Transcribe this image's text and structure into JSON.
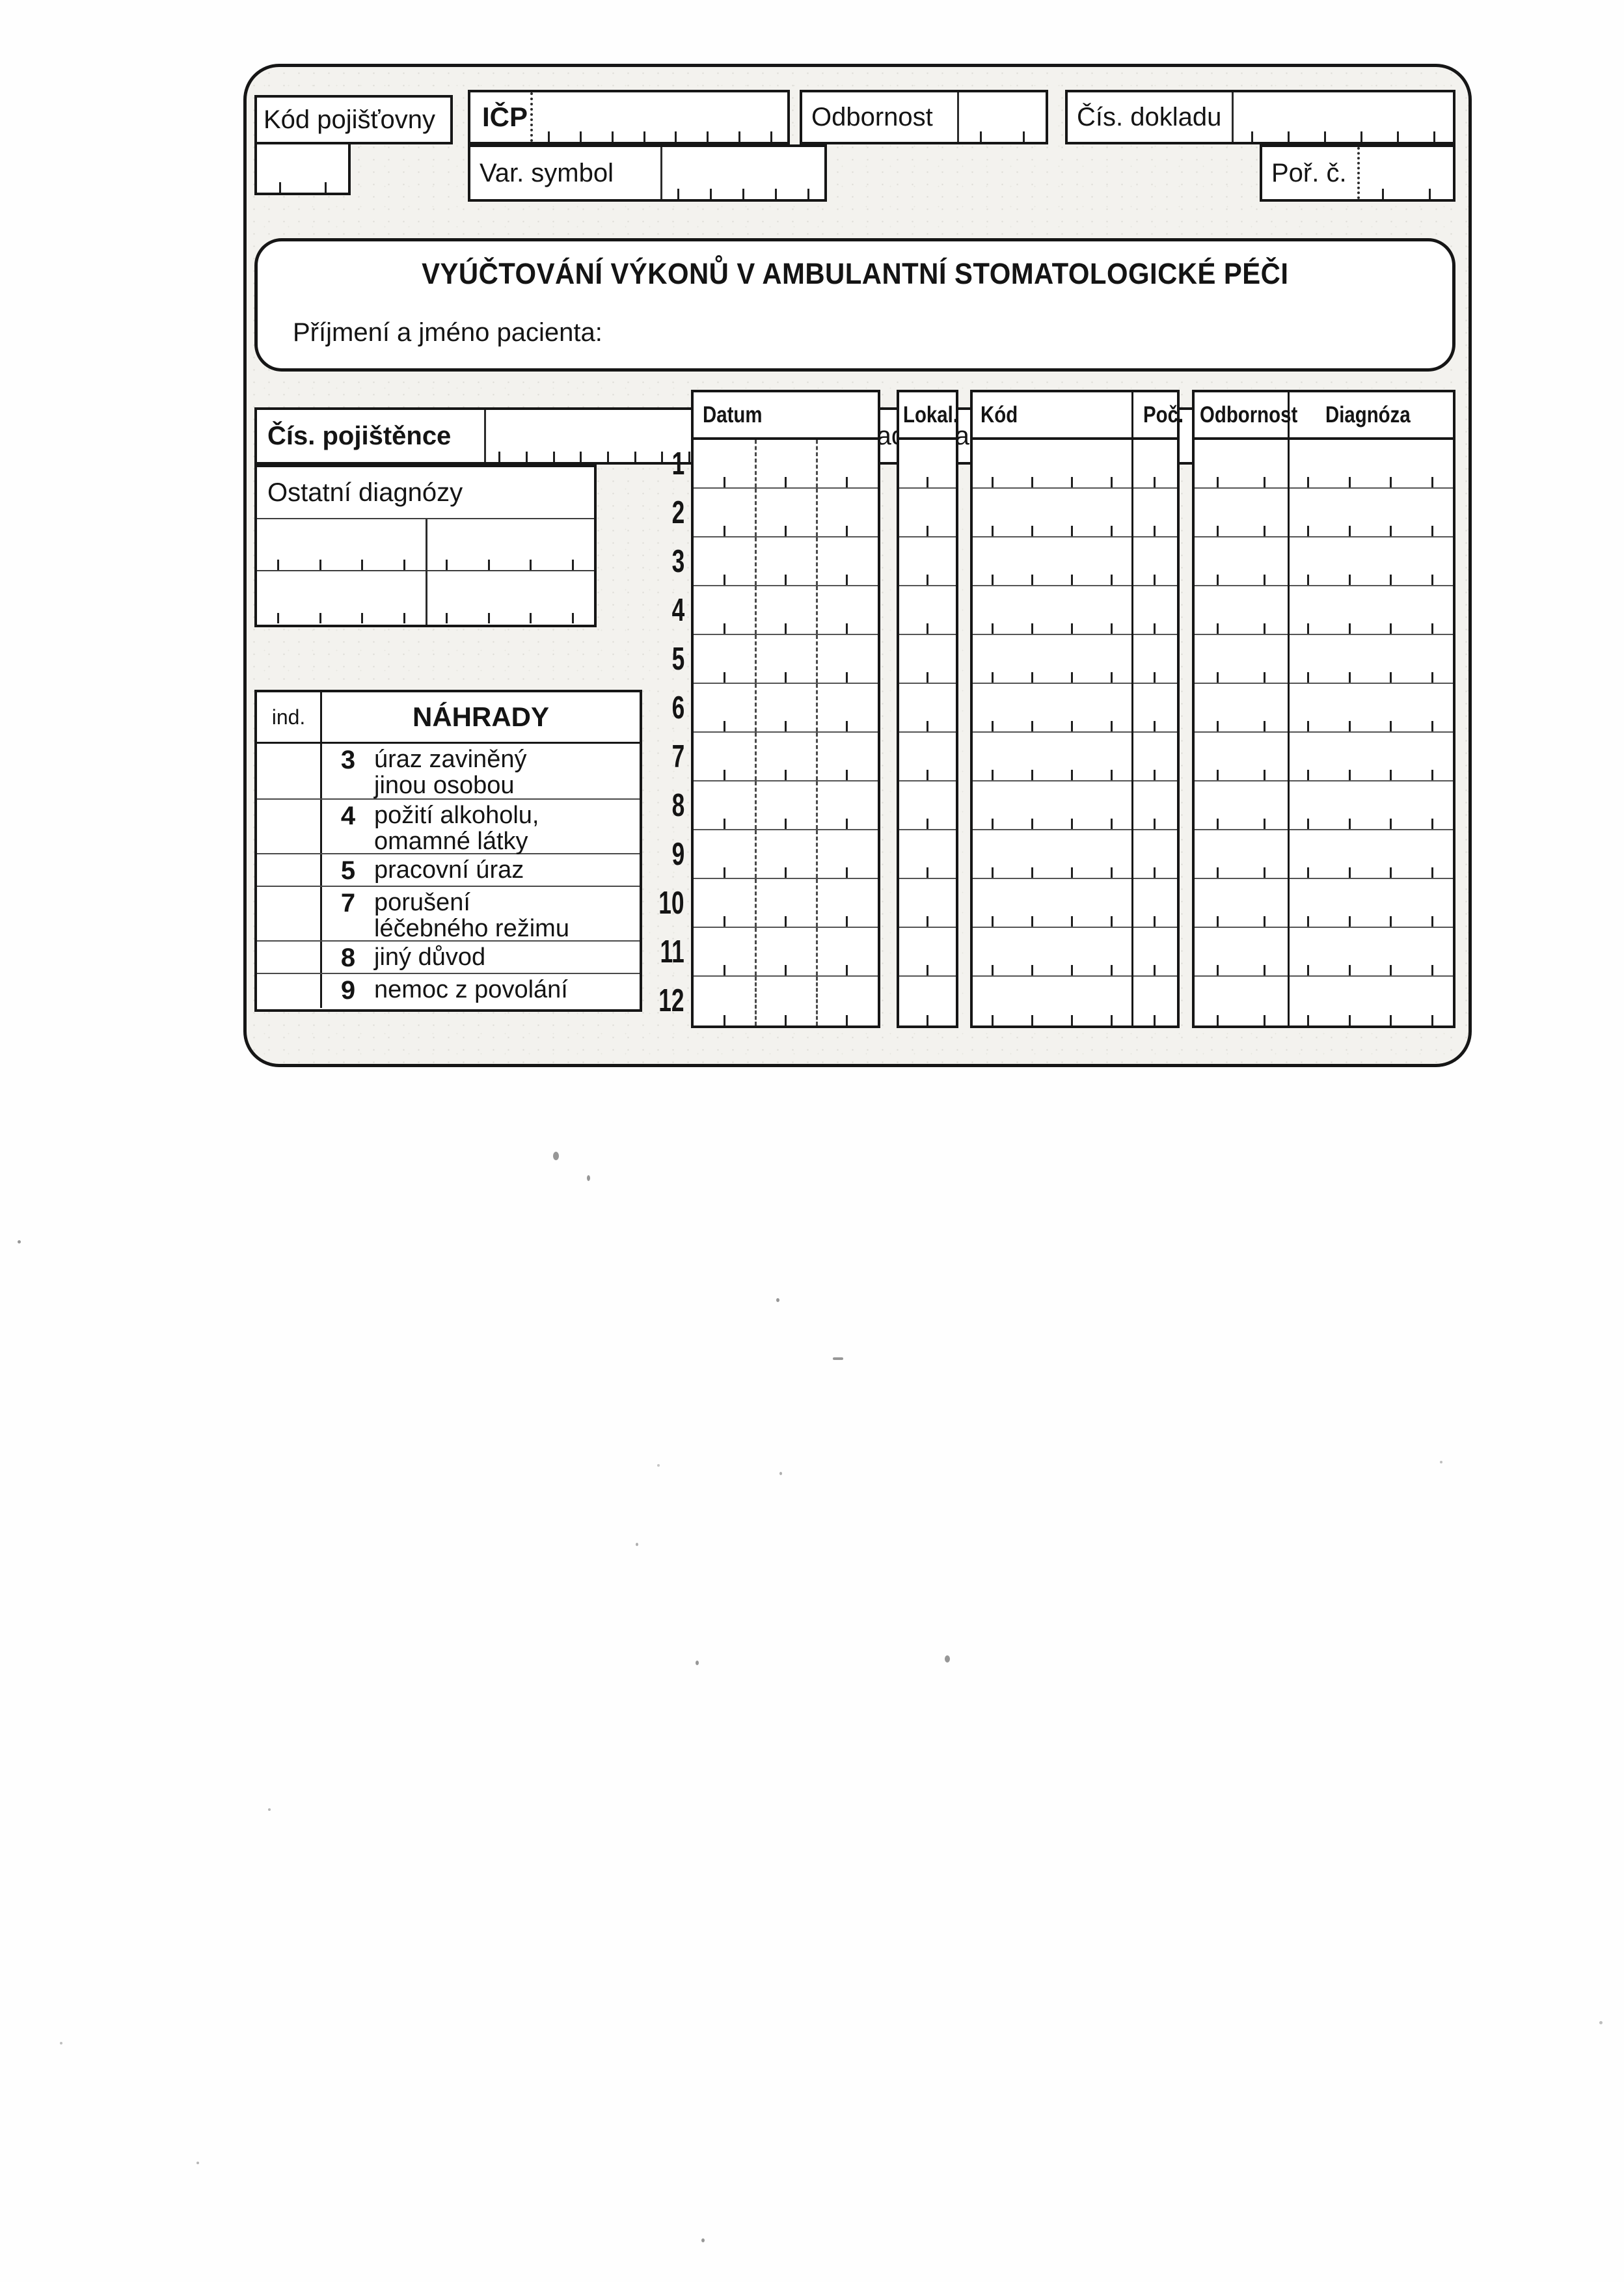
{
  "form_header": {
    "kod_pojistovny": "Kód pojišťovny",
    "icp": "IČP",
    "odbornost": "Odbornost",
    "cis_dokladu": "Čís. dokladu",
    "var_symbol": "Var. symbol",
    "por_c": "Poř. č."
  },
  "title_box": {
    "title": "VYÚČTOVÁNÍ VÝKONŮ V AMBULANTNÍ STOMATOLOGICKÉ PÉČI",
    "patient_label": "Příjmení a jméno pacienta:"
  },
  "patient_row": {
    "cis_pojistence": "Čís. pojištěnce",
    "zakladni_diagnoza": "Základní diagnóza"
  },
  "ostatni_diagnozy": {
    "label": "Ostatní diagnózy"
  },
  "nahrady": {
    "ind_label": "ind.",
    "title": "NÁHRADY",
    "rows": [
      {
        "code": "3",
        "text": "úraz zaviněný\njinou osobou"
      },
      {
        "code": "4",
        "text": "požití alkoholu,\nomamné látky"
      },
      {
        "code": "5",
        "text": "pracovní úraz"
      },
      {
        "code": "7",
        "text": "porušení\nléčebného režimu"
      },
      {
        "code": "8",
        "text": "jiný důvod"
      },
      {
        "code": "9",
        "text": "nemoc z povolání"
      }
    ]
  },
  "services_table": {
    "columns": [
      "Datum",
      "Lokal.",
      "Kód",
      "Poč.",
      "Odbornost",
      "Diagnóza"
    ],
    "row_numbers": [
      "1",
      "2",
      "3",
      "4",
      "5",
      "6",
      "7",
      "8",
      "9",
      "10",
      "11",
      "12"
    ]
  },
  "colors": {
    "ink": "#161616",
    "form_background": "#f3f2ee",
    "page_background": "#fefefe"
  }
}
